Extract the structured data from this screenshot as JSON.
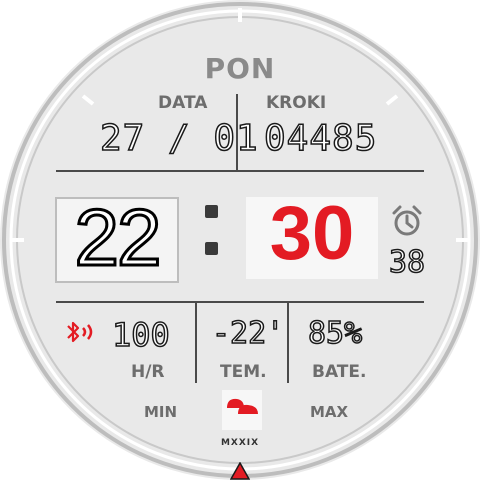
{
  "watchface": {
    "day_label": "PON",
    "date": {
      "label": "DATA",
      "value": "27 / 01"
    },
    "steps": {
      "label": "KROKI",
      "value": "04485"
    },
    "time": {
      "hour": "22",
      "minute": "30"
    },
    "alarm": {
      "icon": "alarm-clock-icon",
      "value": "38"
    },
    "heart_rate": {
      "value": "100",
      "label": "H/R"
    },
    "temperature": {
      "value": "-22'",
      "label": "TEM."
    },
    "battery": {
      "value": "85%",
      "label": "BATE."
    },
    "weather": {
      "min_label": "MIN",
      "max_label": "MAX",
      "icon": "weather-cloud-icon"
    },
    "brand": "MXXIX"
  },
  "colors": {
    "accent_red": "#e31b23",
    "face": "#e9e9e9",
    "lines": "#4a4a4a"
  }
}
